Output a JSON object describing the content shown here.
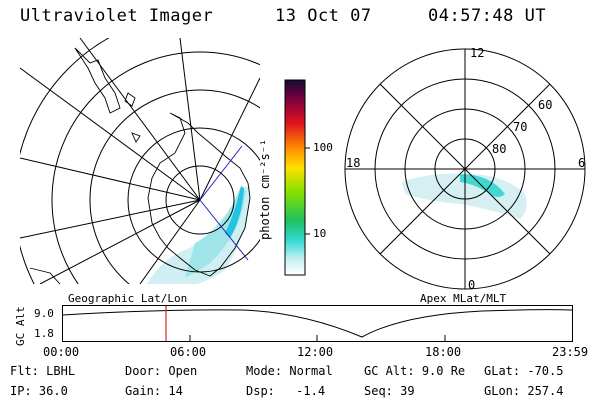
{
  "header": {
    "instrument": "Ultraviolet Imager",
    "date": "13 Oct 07",
    "time": "04:57:48 UT"
  },
  "colorbar": {
    "unit_label": "photon cm⁻²s⁻¹",
    "tick_labels": [
      "100",
      "10"
    ],
    "levels_note": "rainbow scale black-top to white-bottom"
  },
  "geo_map": {
    "label": "Geographic Lat/Lon"
  },
  "polar_map": {
    "label": "Apex MLat/MLT",
    "mlt_labels": {
      "top": "12",
      "left": "18",
      "right": "6",
      "bottom": "0"
    },
    "lat_labels": [
      "60",
      "70",
      "80"
    ]
  },
  "altitude_plot": {
    "y_axis_label": "GC Alt",
    "y_ticks": [
      "9.0",
      "1.8"
    ],
    "x_ticks": [
      "00:00",
      "06:00",
      "12:00",
      "18:00",
      "23:59"
    ]
  },
  "status": {
    "flt_label": "Flt:",
    "flt_value": "LBHL",
    "ip_label": "IP:",
    "ip_value": "36.0",
    "door_label": "Door:",
    "door_value": "Open",
    "gain_label": "Gain:",
    "gain_value": "14",
    "mode_label": "Mode:",
    "mode_value": "Normal",
    "dsp_label": "Dsp:",
    "dsp_value": "-1.4",
    "gcalt_label": "GC Alt:",
    "gcalt_value": "9.0 Re",
    "seq_label": "Seq:",
    "seq_value": "39",
    "glat_label": "GLat:",
    "glat_value": "-70.5",
    "glon_label": "GLon:",
    "glon_value": "257.4"
  },
  "colors": {
    "marker": "#e02020",
    "aurora_light": "#bfe8ee",
    "aurora_mid": "#40d8d0",
    "aurora_strong": "#20c0e0",
    "sat_track": "#2020c0"
  }
}
